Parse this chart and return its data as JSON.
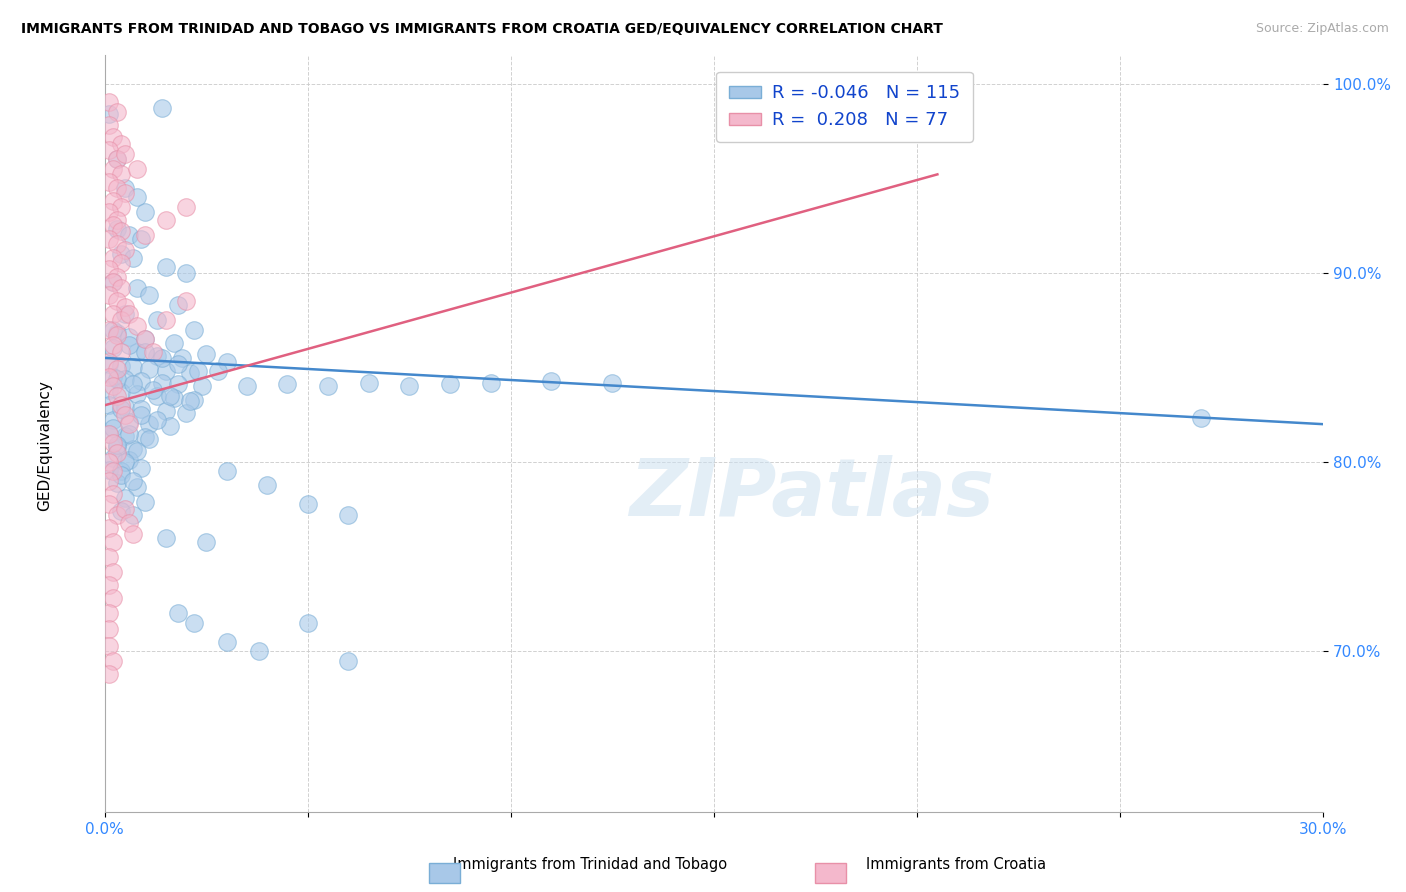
{
  "title": "IMMIGRANTS FROM TRINIDAD AND TOBAGO VS IMMIGRANTS FROM CROATIA GED/EQUIVALENCY CORRELATION CHART",
  "source": "Source: ZipAtlas.com",
  "ylabel": "GED/Equivalency",
  "xlim": [
    0.0,
    0.3
  ],
  "ylim": [
    0.615,
    1.015
  ],
  "ytick_vals": [
    0.7,
    0.8,
    0.9,
    1.0
  ],
  "ytick_labels": [
    "70.0%",
    "80.0%",
    "90.0%",
    "100.0%"
  ],
  "xtick_vals": [
    0.0,
    0.05,
    0.1,
    0.15,
    0.2,
    0.25,
    0.3
  ],
  "xtick_labels": [
    "0.0%",
    "",
    "",
    "",
    "",
    "",
    "30.0%"
  ],
  "blue_fill": "#a8c8e8",
  "blue_edge": "#7aaed6",
  "pink_fill": "#f4b8cc",
  "pink_edge": "#e890a8",
  "blue_line_color": "#4488cc",
  "pink_line_color": "#e06080",
  "R_blue": -0.046,
  "N_blue": 115,
  "R_pink": 0.208,
  "N_pink": 77,
  "legend_label_blue": "Immigrants from Trinidad and Tobago",
  "legend_label_pink": "Immigrants from Croatia",
  "watermark": "ZIPatlas",
  "blue_line_x": [
    0.0,
    0.3
  ],
  "blue_line_y": [
    0.855,
    0.82
  ],
  "pink_line_x": [
    0.0,
    0.205
  ],
  "pink_line_y": [
    0.83,
    0.952
  ],
  "blue_scatter": [
    [
      0.001,
      0.984
    ],
    [
      0.014,
      0.987
    ],
    [
      0.003,
      0.96
    ],
    [
      0.005,
      0.945
    ],
    [
      0.008,
      0.94
    ],
    [
      0.01,
      0.932
    ],
    [
      0.003,
      0.923
    ],
    [
      0.006,
      0.92
    ],
    [
      0.009,
      0.918
    ],
    [
      0.004,
      0.91
    ],
    [
      0.007,
      0.908
    ],
    [
      0.015,
      0.903
    ],
    [
      0.02,
      0.9
    ],
    [
      0.002,
      0.895
    ],
    [
      0.008,
      0.892
    ],
    [
      0.011,
      0.888
    ],
    [
      0.018,
      0.883
    ],
    [
      0.005,
      0.878
    ],
    [
      0.013,
      0.875
    ],
    [
      0.022,
      0.87
    ],
    [
      0.003,
      0.868
    ],
    [
      0.006,
      0.866
    ],
    [
      0.01,
      0.865
    ],
    [
      0.017,
      0.863
    ],
    [
      0.002,
      0.86
    ],
    [
      0.008,
      0.858
    ],
    [
      0.013,
      0.856
    ],
    [
      0.019,
      0.855
    ],
    [
      0.025,
      0.857
    ],
    [
      0.03,
      0.853
    ],
    [
      0.001,
      0.852
    ],
    [
      0.004,
      0.851
    ],
    [
      0.007,
      0.85
    ],
    [
      0.011,
      0.849
    ],
    [
      0.015,
      0.848
    ],
    [
      0.021,
      0.847
    ],
    [
      0.028,
      0.848
    ],
    [
      0.002,
      0.845
    ],
    [
      0.005,
      0.844
    ],
    [
      0.009,
      0.843
    ],
    [
      0.014,
      0.842
    ],
    [
      0.018,
      0.841
    ],
    [
      0.024,
      0.84
    ],
    [
      0.035,
      0.84
    ],
    [
      0.045,
      0.841
    ],
    [
      0.055,
      0.84
    ],
    [
      0.065,
      0.842
    ],
    [
      0.075,
      0.84
    ],
    [
      0.085,
      0.841
    ],
    [
      0.095,
      0.842
    ],
    [
      0.11,
      0.843
    ],
    [
      0.125,
      0.842
    ],
    [
      0.001,
      0.838
    ],
    [
      0.004,
      0.837
    ],
    [
      0.008,
      0.836
    ],
    [
      0.013,
      0.835
    ],
    [
      0.017,
      0.834
    ],
    [
      0.022,
      0.833
    ],
    [
      0.001,
      0.83
    ],
    [
      0.005,
      0.829
    ],
    [
      0.009,
      0.828
    ],
    [
      0.015,
      0.827
    ],
    [
      0.02,
      0.826
    ],
    [
      0.002,
      0.822
    ],
    [
      0.006,
      0.821
    ],
    [
      0.011,
      0.82
    ],
    [
      0.016,
      0.819
    ],
    [
      0.001,
      0.815
    ],
    [
      0.005,
      0.814
    ],
    [
      0.01,
      0.813
    ],
    [
      0.003,
      0.808
    ],
    [
      0.007,
      0.807
    ],
    [
      0.002,
      0.802
    ],
    [
      0.006,
      0.801
    ],
    [
      0.001,
      0.796
    ],
    [
      0.004,
      0.795
    ],
    [
      0.003,
      0.789
    ],
    [
      0.008,
      0.787
    ],
    [
      0.005,
      0.781
    ],
    [
      0.01,
      0.779
    ],
    [
      0.004,
      0.774
    ],
    [
      0.007,
      0.772
    ],
    [
      0.03,
      0.795
    ],
    [
      0.04,
      0.788
    ],
    [
      0.05,
      0.778
    ],
    [
      0.06,
      0.772
    ],
    [
      0.015,
      0.76
    ],
    [
      0.025,
      0.758
    ],
    [
      0.018,
      0.72
    ],
    [
      0.022,
      0.715
    ],
    [
      0.03,
      0.705
    ],
    [
      0.038,
      0.7
    ],
    [
      0.05,
      0.715
    ],
    [
      0.06,
      0.695
    ],
    [
      0.27,
      0.823
    ],
    [
      0.002,
      0.87
    ],
    [
      0.006,
      0.862
    ],
    [
      0.01,
      0.858
    ],
    [
      0.014,
      0.855
    ],
    [
      0.018,
      0.852
    ],
    [
      0.023,
      0.848
    ],
    [
      0.003,
      0.844
    ],
    [
      0.007,
      0.841
    ],
    [
      0.012,
      0.838
    ],
    [
      0.016,
      0.835
    ],
    [
      0.021,
      0.832
    ],
    [
      0.004,
      0.828
    ],
    [
      0.009,
      0.825
    ],
    [
      0.013,
      0.822
    ],
    [
      0.002,
      0.818
    ],
    [
      0.006,
      0.815
    ],
    [
      0.011,
      0.812
    ],
    [
      0.003,
      0.809
    ],
    [
      0.008,
      0.806
    ],
    [
      0.005,
      0.8
    ],
    [
      0.009,
      0.797
    ],
    [
      0.004,
      0.793
    ],
    [
      0.007,
      0.79
    ]
  ],
  "pink_scatter": [
    [
      0.001,
      0.99
    ],
    [
      0.003,
      0.985
    ],
    [
      0.001,
      0.978
    ],
    [
      0.002,
      0.972
    ],
    [
      0.004,
      0.968
    ],
    [
      0.001,
      0.965
    ],
    [
      0.003,
      0.96
    ],
    [
      0.002,
      0.955
    ],
    [
      0.004,
      0.952
    ],
    [
      0.001,
      0.948
    ],
    [
      0.003,
      0.945
    ],
    [
      0.005,
      0.942
    ],
    [
      0.002,
      0.938
    ],
    [
      0.004,
      0.935
    ],
    [
      0.001,
      0.932
    ],
    [
      0.003,
      0.928
    ],
    [
      0.002,
      0.925
    ],
    [
      0.004,
      0.922
    ],
    [
      0.001,
      0.918
    ],
    [
      0.003,
      0.915
    ],
    [
      0.005,
      0.912
    ],
    [
      0.002,
      0.908
    ],
    [
      0.004,
      0.905
    ],
    [
      0.001,
      0.902
    ],
    [
      0.003,
      0.898
    ],
    [
      0.002,
      0.895
    ],
    [
      0.004,
      0.892
    ],
    [
      0.001,
      0.888
    ],
    [
      0.003,
      0.885
    ],
    [
      0.005,
      0.882
    ],
    [
      0.002,
      0.878
    ],
    [
      0.004,
      0.875
    ],
    [
      0.001,
      0.87
    ],
    [
      0.003,
      0.867
    ],
    [
      0.002,
      0.862
    ],
    [
      0.004,
      0.858
    ],
    [
      0.001,
      0.853
    ],
    [
      0.003,
      0.849
    ],
    [
      0.006,
      0.878
    ],
    [
      0.008,
      0.872
    ],
    [
      0.01,
      0.865
    ],
    [
      0.012,
      0.858
    ],
    [
      0.015,
      0.875
    ],
    [
      0.02,
      0.885
    ],
    [
      0.001,
      0.845
    ],
    [
      0.002,
      0.84
    ],
    [
      0.003,
      0.835
    ],
    [
      0.004,
      0.83
    ],
    [
      0.005,
      0.825
    ],
    [
      0.006,
      0.82
    ],
    [
      0.001,
      0.815
    ],
    [
      0.002,
      0.81
    ],
    [
      0.003,
      0.805
    ],
    [
      0.001,
      0.8
    ],
    [
      0.002,
      0.795
    ],
    [
      0.001,
      0.79
    ],
    [
      0.002,
      0.783
    ],
    [
      0.001,
      0.778
    ],
    [
      0.003,
      0.772
    ],
    [
      0.001,
      0.765
    ],
    [
      0.002,
      0.758
    ],
    [
      0.001,
      0.75
    ],
    [
      0.002,
      0.742
    ],
    [
      0.001,
      0.735
    ],
    [
      0.002,
      0.728
    ],
    [
      0.001,
      0.72
    ],
    [
      0.001,
      0.712
    ],
    [
      0.001,
      0.703
    ],
    [
      0.002,
      0.695
    ],
    [
      0.001,
      0.688
    ],
    [
      0.005,
      0.963
    ],
    [
      0.008,
      0.955
    ],
    [
      0.01,
      0.92
    ],
    [
      0.015,
      0.928
    ],
    [
      0.02,
      0.935
    ],
    [
      0.005,
      0.775
    ],
    [
      0.006,
      0.768
    ],
    [
      0.007,
      0.762
    ]
  ]
}
